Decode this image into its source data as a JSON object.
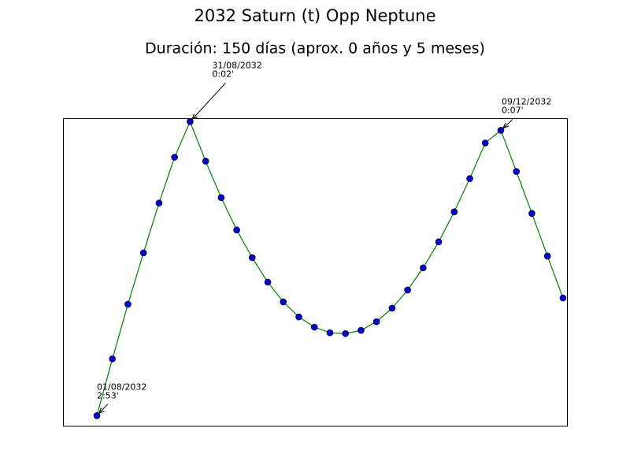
{
  "chart_data": {
    "type": "line",
    "title": "2032 Saturn (t) Opp Neptune",
    "subtitle": "Duración: 150 días (aprox. 0 años y 5 meses)",
    "categories": [
      null,
      null,
      null,
      null,
      null,
      null,
      null,
      null,
      null,
      null,
      null,
      null,
      null,
      null,
      null,
      null,
      null,
      null,
      null,
      null,
      null,
      null,
      null,
      null,
      null,
      null,
      null,
      null,
      null,
      null,
      null
    ],
    "series": [
      {
        "color": "#008000",
        "marker_color": "#0000cc",
        "values": [
          2.883,
          2.332,
          1.803,
          1.305,
          0.822,
          0.378,
          0.033,
          0.416,
          0.769,
          1.083,
          1.351,
          1.589,
          1.78,
          1.926,
          2.025,
          2.079,
          2.087,
          2.056,
          1.972,
          1.841,
          1.665,
          1.45,
          1.198,
          0.907,
          0.585,
          0.24,
          0.117,
          0.516,
          0.922,
          1.336,
          1.742
        ]
      }
    ],
    "ylim": [
      2.98,
      0
    ],
    "annotations": [
      {
        "point": 0,
        "text": [
          "01/08/2032",
          "2:53'"
        ]
      },
      {
        "point": 6,
        "text": [
          "31/08/2032",
          "0:02'"
        ]
      },
      {
        "point": 26,
        "text": [
          "09/12/2032",
          "0:07'"
        ]
      }
    ]
  }
}
